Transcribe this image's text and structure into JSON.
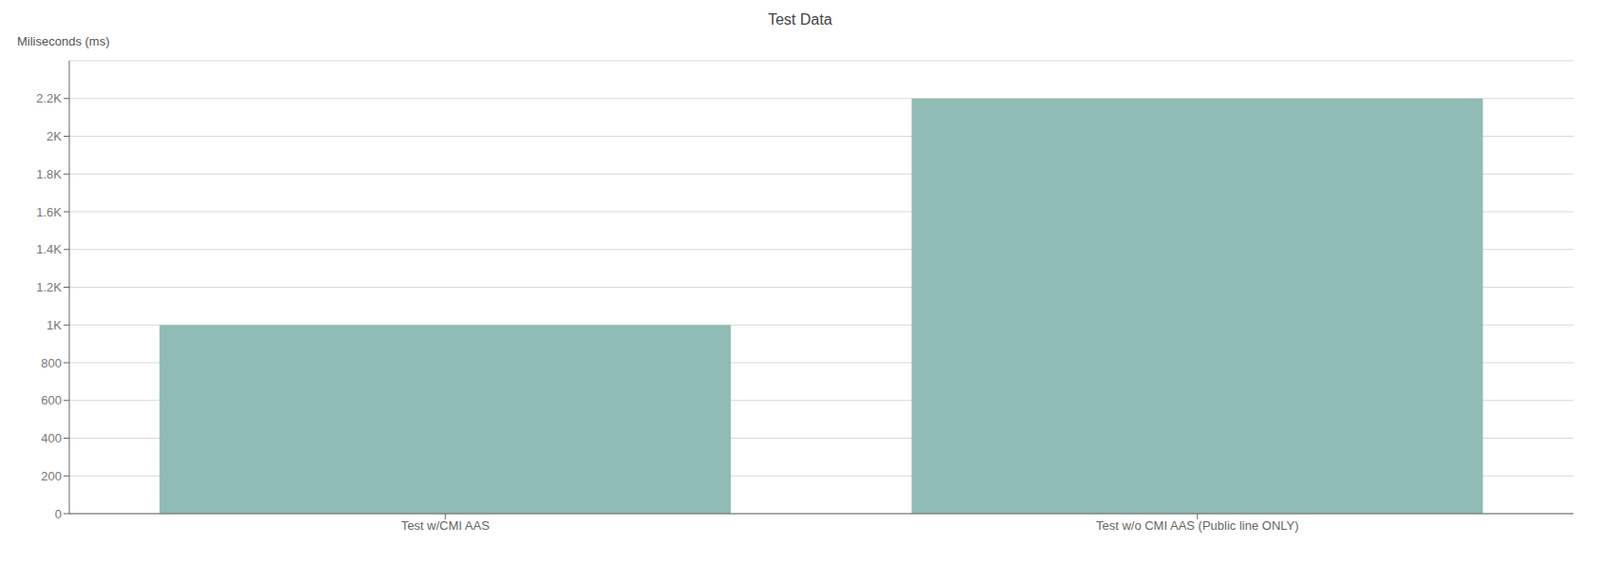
{
  "chart_data": {
    "type": "bar",
    "title": "Test Data",
    "ylabel": "Miliseconds (ms)",
    "categories": [
      "Test w/CMI AAS",
      "Test w/o CMI AAS (Public line ONLY)"
    ],
    "values": [
      1000,
      2200
    ],
    "color": "#8FBCB4",
    "ylim": [
      0,
      2400
    ],
    "yticks": [
      0,
      200,
      400,
      600,
      800,
      {
        "value": 1000,
        "label": "1K"
      },
      {
        "value": 1200,
        "label": "1.2K"
      },
      {
        "value": 1400,
        "label": "1.4K"
      },
      {
        "value": 1600,
        "label": "1.6K"
      },
      {
        "value": 1800,
        "label": "1.8K"
      },
      {
        "value": 2000,
        "label": "2K"
      },
      {
        "value": 2200,
        "label": "2.2K"
      }
    ],
    "grid": true
  }
}
